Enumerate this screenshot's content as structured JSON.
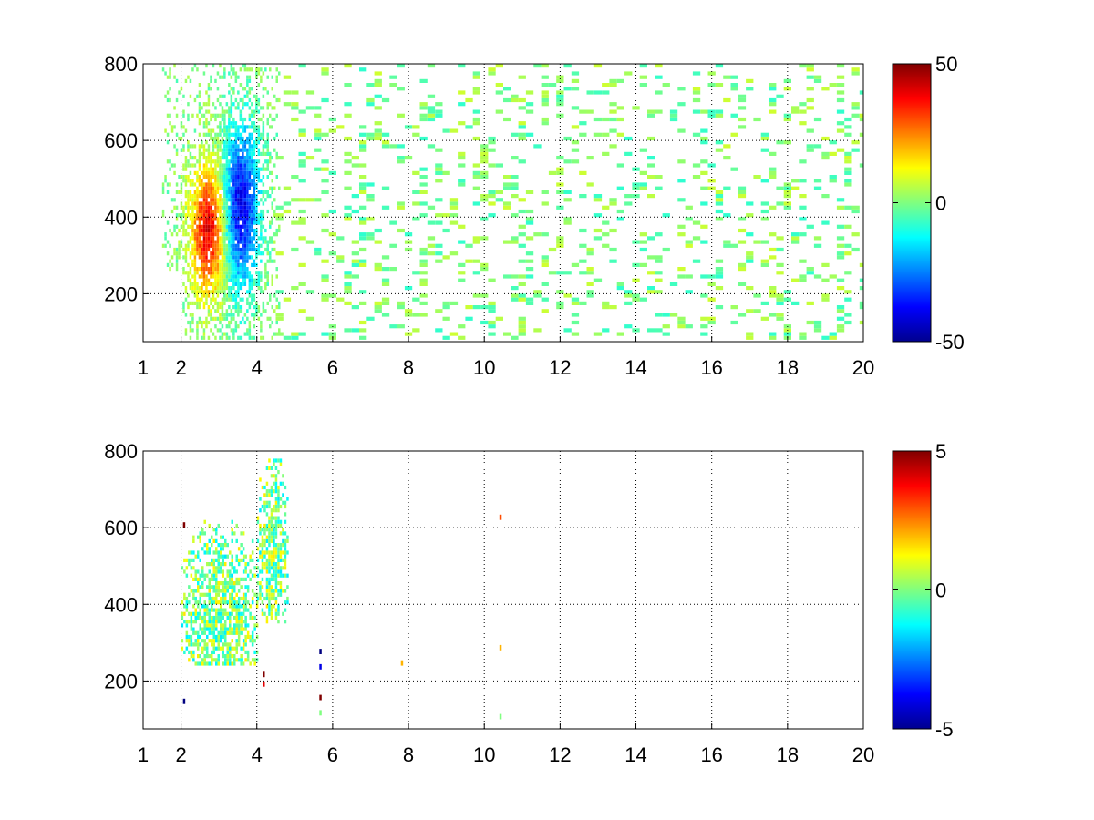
{
  "chart_data": [
    {
      "type": "heatmap",
      "title": "",
      "xlabel": "",
      "ylabel": "",
      "xlim": [
        1,
        20
      ],
      "ylim": [
        75,
        800
      ],
      "xticks": [
        1,
        2,
        4,
        6,
        8,
        10,
        12,
        14,
        16,
        18,
        20
      ],
      "yticks": [
        200,
        400,
        600,
        800
      ],
      "grid": true,
      "colormap": "jet",
      "colorbar": {
        "min": -50,
        "max": 50,
        "ticks": [
          50,
          0,
          -50
        ]
      },
      "features": [
        {
          "description": "positive lobe",
          "x_range": [
            2.0,
            3.4
          ],
          "y_range": [
            270,
            780
          ],
          "peak_value": 40
        },
        {
          "description": "negative lobe",
          "x_range": [
            2.8,
            4.2
          ],
          "y_range": [
            280,
            780
          ],
          "peak_value": -40
        }
      ],
      "sparse_region": {
        "x_range": [
          4.5,
          20
        ],
        "value_range": [
          -8,
          8
        ],
        "fill_fraction": 0.3
      }
    },
    {
      "type": "heatmap",
      "title": "",
      "xlabel": "",
      "ylabel": "",
      "xlim": [
        1,
        20
      ],
      "ylim": [
        75,
        800
      ],
      "xticks": [
        1,
        2,
        4,
        6,
        8,
        10,
        12,
        14,
        16,
        18,
        20
      ],
      "yticks": [
        200,
        400,
        600,
        800
      ],
      "grid": true,
      "colormap": "jet",
      "colorbar": {
        "min": -5,
        "max": 5,
        "ticks": [
          5,
          0,
          -5
        ]
      },
      "features": [
        {
          "description": "main cluster",
          "x_range": [
            2.0,
            4.0
          ],
          "y_range": [
            240,
            780
          ],
          "value_range": [
            -1.5,
            1.5
          ]
        },
        {
          "description": "secondary cluster",
          "x_range": [
            4.0,
            4.8
          ],
          "y_range": [
            350,
            780
          ],
          "value_range": [
            -1.5,
            1.5
          ]
        }
      ],
      "outliers": [
        {
          "x": 2.05,
          "y": 600,
          "value": 5
        },
        {
          "x": 2.05,
          "y": 140,
          "value": -5
        },
        {
          "x": 4.15,
          "y": 210,
          "value": 5
        },
        {
          "x": 4.15,
          "y": 185,
          "value": 4
        },
        {
          "x": 5.65,
          "y": 270,
          "value": -5
        },
        {
          "x": 5.65,
          "y": 230,
          "value": -4
        },
        {
          "x": 5.65,
          "y": 150,
          "value": 5
        },
        {
          "x": 5.65,
          "y": 110,
          "value": 0
        },
        {
          "x": 7.8,
          "y": 240,
          "value": 2
        },
        {
          "x": 10.4,
          "y": 620,
          "value": 3
        },
        {
          "x": 10.4,
          "y": 280,
          "value": 2
        },
        {
          "x": 10.4,
          "y": 100,
          "value": 0
        }
      ]
    }
  ]
}
